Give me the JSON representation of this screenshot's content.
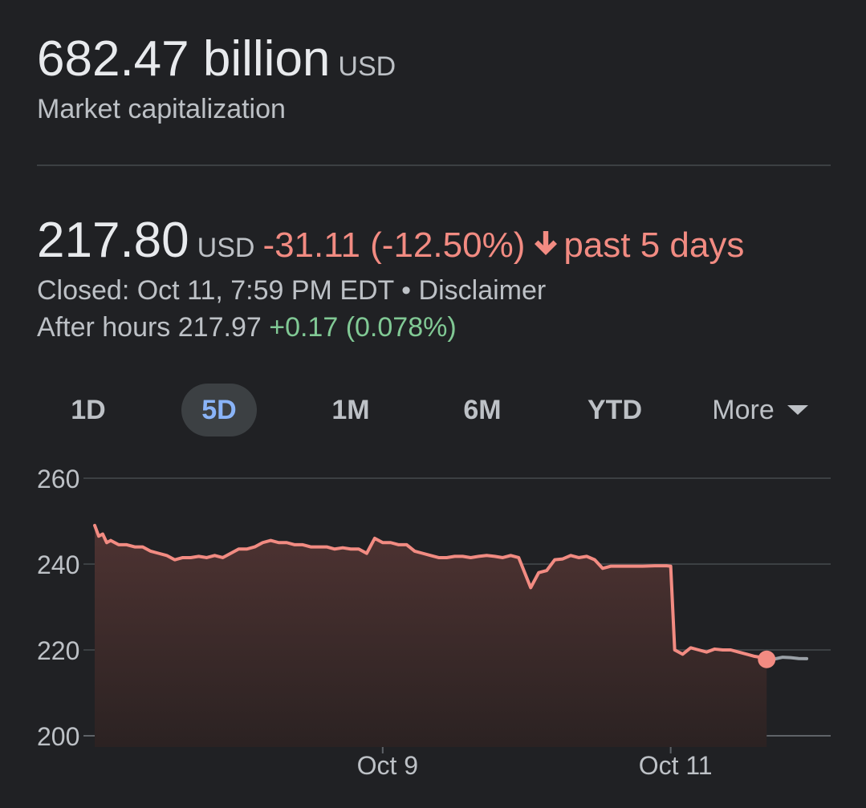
{
  "summary": {
    "market_cap": "682.47 billion",
    "market_cap_currency": "USD",
    "market_cap_label": "Market capitalization"
  },
  "quote": {
    "price": "217.80",
    "currency": "USD",
    "change": "-31.11 (-12.50%)",
    "period": "past 5 days",
    "status": "Closed: Oct 11, 7:59 PM EDT",
    "separator": "•",
    "disclaimer": "Disclaimer",
    "after_hours_label": "After hours",
    "after_hours_price": "217.97",
    "after_hours_change": "+0.17 (0.078%)"
  },
  "tabs": [
    {
      "label": "1D",
      "active": false
    },
    {
      "label": "5D",
      "active": true
    },
    {
      "label": "1M",
      "active": false
    },
    {
      "label": "6M",
      "active": false
    },
    {
      "label": "YTD",
      "active": false
    },
    {
      "label": "More",
      "active": false
    }
  ],
  "colors": {
    "background": "#202124",
    "negative": "#f28b82",
    "positive": "#81c995",
    "after_hours_line": "#9aa0a6",
    "grid": "#3c4043",
    "active_tab_text": "#8ab4f8"
  },
  "chart_data": {
    "type": "area",
    "y_ticks": [
      "260",
      "240",
      "220",
      "200"
    ],
    "y_tick_values": [
      260,
      240,
      220,
      200
    ],
    "ylim": [
      200,
      260
    ],
    "x_ticks": [
      "Oct 9",
      "Oct 11"
    ],
    "x_tick_positions": [
      36,
      72
    ],
    "xlim": [
      0,
      92
    ],
    "grid": true,
    "series": [
      {
        "values": [
          [
            0,
            249
          ],
          [
            0.5,
            246.5
          ],
          [
            1,
            247
          ],
          [
            1.5,
            245
          ],
          [
            2,
            245.5
          ],
          [
            2.5,
            245
          ],
          [
            3,
            244.5
          ],
          [
            4,
            244.5
          ],
          [
            5,
            244
          ],
          [
            6,
            244
          ],
          [
            7,
            243
          ],
          [
            8,
            242.5
          ],
          [
            9,
            242
          ],
          [
            10,
            241
          ],
          [
            11,
            241.5
          ],
          [
            12,
            241.5
          ],
          [
            13,
            241.8
          ],
          [
            14,
            241.5
          ],
          [
            15,
            242
          ],
          [
            16,
            241.5
          ],
          [
            17,
            242.5
          ],
          [
            18,
            243.5
          ],
          [
            19,
            243.5
          ],
          [
            20,
            244
          ],
          [
            21,
            245
          ],
          [
            22,
            245.5
          ],
          [
            23,
            245
          ],
          [
            24,
            245
          ],
          [
            25,
            244.5
          ],
          [
            26,
            244.5
          ],
          [
            27,
            244
          ],
          [
            28,
            244
          ],
          [
            29,
            244
          ],
          [
            30,
            243.5
          ],
          [
            31,
            243.8
          ],
          [
            32,
            243.5
          ],
          [
            33,
            243.5
          ],
          [
            34,
            242.5
          ],
          [
            35,
            246
          ],
          [
            36,
            245
          ],
          [
            37,
            245
          ],
          [
            38,
            244.5
          ],
          [
            39,
            244.5
          ],
          [
            40,
            243
          ],
          [
            41,
            242.5
          ],
          [
            42,
            242
          ],
          [
            43,
            241.5
          ],
          [
            44,
            241.5
          ],
          [
            45,
            241.8
          ],
          [
            46,
            241.8
          ],
          [
            47,
            241.5
          ],
          [
            48,
            241.8
          ],
          [
            49,
            242
          ],
          [
            50,
            241.8
          ],
          [
            51,
            241.5
          ],
          [
            52,
            242
          ],
          [
            53,
            241.5
          ],
          [
            54.5,
            234.5
          ],
          [
            55.5,
            238
          ],
          [
            56.5,
            238.5
          ],
          [
            57.5,
            241
          ],
          [
            58.5,
            241.2
          ],
          [
            59.5,
            242
          ],
          [
            60.5,
            241.5
          ],
          [
            61.5,
            241.8
          ],
          [
            62.5,
            241
          ],
          [
            63.5,
            239
          ],
          [
            64.5,
            239.5
          ],
          [
            65.5,
            239.5
          ],
          [
            66.5,
            239.5
          ],
          [
            67.5,
            239.5
          ],
          [
            68.5,
            239.5
          ],
          [
            70,
            239.6
          ],
          [
            71.5,
            239.6
          ],
          [
            72,
            239.5
          ],
          [
            72.5,
            220
          ],
          [
            73.5,
            219
          ],
          [
            74.5,
            220.5
          ],
          [
            75.5,
            220
          ],
          [
            76.5,
            219.5
          ],
          [
            77.5,
            220.2
          ],
          [
            78.5,
            220
          ],
          [
            79.5,
            220
          ],
          [
            80.5,
            219.5
          ],
          [
            81.5,
            219
          ],
          [
            82.5,
            218.5
          ],
          [
            83.5,
            218.2
          ],
          [
            84,
            217.8
          ]
        ],
        "color": "#f28b82"
      },
      {
        "values": [
          [
            84,
            217.8
          ],
          [
            85,
            217.9
          ],
          [
            86,
            218.3
          ],
          [
            87,
            218.2
          ],
          [
            88,
            218.0
          ],
          [
            89,
            217.97
          ]
        ],
        "color": "#9aa0a6"
      }
    ],
    "last_point": [
      84,
      217.8
    ]
  }
}
